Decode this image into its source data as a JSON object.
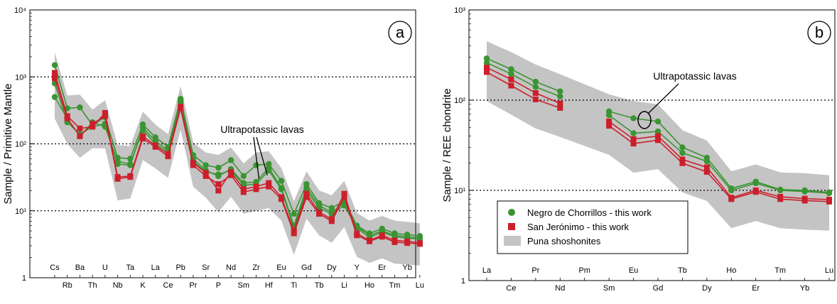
{
  "chart_data": [
    {
      "panel": "a",
      "type": "line",
      "scale": "log",
      "ylabel": "Sample / Primitive Mantle",
      "ylim": [
        1,
        10000
      ],
      "grid_dotted_at": [
        10,
        100,
        1000
      ],
      "annotation": "Ultrapotassic lavas",
      "categories": [
        "Cs",
        "Rb",
        "Ba",
        "Th",
        "U",
        "Nb",
        "Ta",
        "K",
        "La",
        "Ce",
        "Pb",
        "Pr",
        "Sr",
        "P",
        "Nd",
        "Sm",
        "Zr",
        "Hf",
        "Eu",
        "Ti",
        "Gd",
        "Tb",
        "Dy",
        "Li",
        "Y",
        "Ho",
        "Er",
        "Tm",
        "Yb",
        "Lu"
      ],
      "y_ticks": [
        {
          "label": "1",
          "value": 1
        },
        {
          "label": "10¹",
          "value": 10
        },
        {
          "label": "10²",
          "value": 100
        },
        {
          "label": "10³",
          "value": 1000
        },
        {
          "label": "10⁴",
          "value": 10000
        }
      ],
      "series": [
        {
          "group": "Negro de Chorrillos - this work",
          "color": "#3a9432",
          "marker": "circle",
          "values": [
            1500,
            340,
            350,
            190,
            250,
            62,
            60,
            195,
            125,
            90,
            470,
            68,
            48,
            44,
            57,
            33,
            48,
            50,
            28,
            9,
            25,
            13,
            11,
            14,
            6,
            4.6,
            5.4,
            4.6,
            4.4,
            4.2
          ]
        },
        {
          "group": "Negro de Chorrillos - this work",
          "color": "#3a9432",
          "marker": "circle",
          "values": [
            800,
            210,
            140,
            180,
            200,
            50,
            48,
            175,
            110,
            80,
            440,
            60,
            40,
            33,
            42,
            26,
            27,
            44,
            22,
            6,
            22,
            12,
            9.5,
            13,
            5.8,
            4.3,
            5.0,
            4.3,
            4.1,
            3.9
          ]
        },
        {
          "group": "Negro de Chorrillos - this work",
          "color": "#3a9432",
          "marker": "circle",
          "values": [
            500,
            240,
            130,
            210,
            180,
            55,
            50,
            160,
            100,
            75,
            420,
            55,
            38,
            35,
            40,
            24,
            25,
            40,
            21,
            5.5,
            20,
            11,
            9,
            12,
            5.5,
            4.0,
            4.8,
            4.1,
            3.9,
            3.8
          ]
        },
        {
          "group": "San Jerónimo - this work",
          "color": "#cc1f2b",
          "marker": "square",
          "values": [
            1150,
            260,
            170,
            180,
            290,
            32,
            33,
            130,
            95,
            70,
            360,
            52,
            37,
            20,
            38,
            21,
            23,
            26,
            16,
            5,
            18,
            9.5,
            7.5,
            18,
            4.6,
            3.6,
            4.3,
            3.6,
            3.5,
            3.3
          ]
        },
        {
          "group": "San Jerónimo - this work",
          "color": "#cc1f2b",
          "marker": "square",
          "values": [
            950,
            240,
            130,
            200,
            260,
            30,
            32,
            120,
            90,
            65,
            340,
            48,
            33,
            25,
            34,
            19,
            21,
            23,
            15,
            4.6,
            16,
            9,
            7,
            16,
            4.3,
            3.5,
            4.1,
            3.4,
            3.3,
            3.2
          ]
        }
      ]
    },
    {
      "panel": "b",
      "type": "line",
      "scale": "log",
      "ylabel": "Sample / REE chondrite",
      "ylim": [
        1,
        1000
      ],
      "grid_dotted_at": [
        10,
        100
      ],
      "annotation": "Ultrapotassic lavas",
      "categories": [
        "La",
        "Ce",
        "Pr",
        "Nd",
        "Pm",
        "Sm",
        "Eu",
        "Gd",
        "Tb",
        "Dy",
        "Ho",
        "Er",
        "Tm",
        "Yb",
        "Lu"
      ],
      "y_ticks": [
        {
          "label": "1",
          "value": 1
        },
        {
          "label": "10¹",
          "value": 10
        },
        {
          "label": "10²",
          "value": 100
        },
        {
          "label": "10³",
          "value": 1000
        }
      ],
      "series": [
        {
          "group": "Negro de Chorrillos - this work",
          "color": "#3a9432",
          "marker": "circle",
          "values": [
            290,
            220,
            160,
            125,
            null,
            75,
            63,
            58,
            30,
            23,
            10.5,
            12.5,
            10.2,
            10,
            9.5
          ]
        },
        {
          "group": "Negro de Chorrillos - this work",
          "color": "#3a9432",
          "marker": "circle",
          "values": [
            260,
            195,
            140,
            110,
            null,
            68,
            43,
            45,
            26,
            21,
            10,
            12,
            10,
            9.7,
            9.3
          ]
        },
        {
          "group": "San Jerónimo - this work",
          "color": "#cc1f2b",
          "marker": "square",
          "values": [
            230,
            170,
            120,
            92,
            null,
            58,
            37,
            40,
            22,
            18,
            8.3,
            10,
            8.5,
            8.1,
            7.9
          ]
        },
        {
          "group": "San Jerónimo - this work",
          "color": "#cc1f2b",
          "marker": "square",
          "values": [
            205,
            145,
            102,
            82,
            null,
            52,
            33,
            36,
            20,
            16,
            8,
            9.6,
            8,
            7.7,
            7.5
          ]
        }
      ]
    }
  ],
  "legend": {
    "items": [
      {
        "label": "Negro de Chorrillos - this work",
        "color": "#3a9432",
        "marker": "circle"
      },
      {
        "label": "San Jerónimo - this work",
        "color": "#cc1f2b",
        "marker": "square"
      },
      {
        "label": "Puna shoshonites",
        "color": "#c4c4c4",
        "marker": "band"
      }
    ]
  }
}
